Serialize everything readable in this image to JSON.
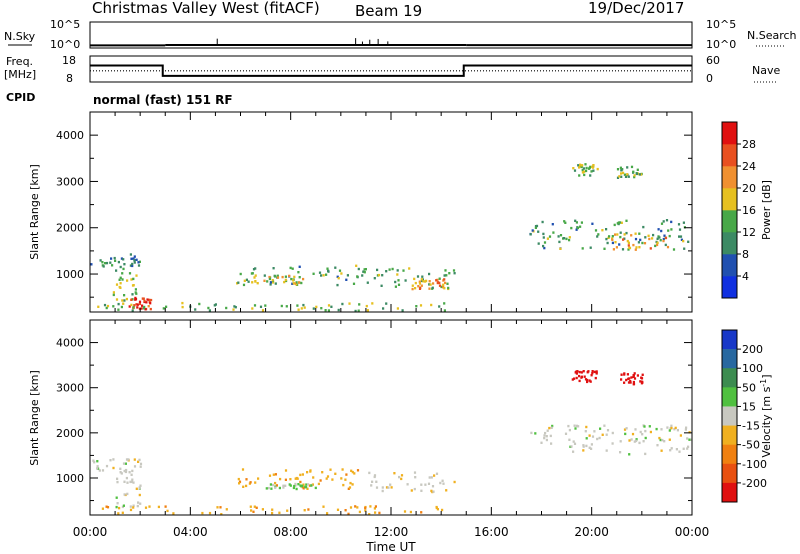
{
  "header": {
    "title": "Christmas Valley West (fitACF)",
    "beam": "Beam 19",
    "date": "19/Dec/2017"
  },
  "noise_panel": {
    "left_label": "N.Sky",
    "right_label": "N.Search",
    "ticks_left": [
      "10^5",
      "10^0"
    ],
    "ticks_right": [
      "10^5",
      "10^0"
    ]
  },
  "freq_panel": {
    "left_label_line1": "Freq.",
    "left_label_line2": "[MHz]",
    "right_label": "Nave",
    "ticks_left": [
      "18",
      "8"
    ],
    "ticks_right": [
      "60",
      "0"
    ]
  },
  "cpid": {
    "label": "CPID",
    "value": "normal (fast) 151 RF"
  },
  "x_axis": {
    "label": "Time UT",
    "ticks": [
      "00:00",
      "04:00",
      "08:00",
      "12:00",
      "16:00",
      "20:00",
      "00:00"
    ]
  },
  "range_axis": {
    "label": "Slant Range [km]",
    "ticks": [
      "1000",
      "2000",
      "3000",
      "4000"
    ]
  },
  "power_colorbar": {
    "label": "Power [dB]",
    "ticks": [
      "4",
      "8",
      "12",
      "16",
      "20",
      "24",
      "28"
    ],
    "colors": [
      "#1030e0",
      "#2050b0",
      "#3c8a64",
      "#48a848",
      "#e6c020",
      "#f09030",
      "#e85020",
      "#e01010"
    ]
  },
  "velocity_colorbar": {
    "label_text": "Velocity [m s",
    "label_exp": "-1",
    "label_close": "]",
    "ticks": [
      "200",
      "100",
      "50",
      "15",
      "-15",
      "-50",
      "-100",
      "-200"
    ],
    "colors": [
      "#1838c8",
      "#2868a0",
      "#3c8c50",
      "#50c040",
      "#c8c8c0",
      "#f0b020",
      "#f08010",
      "#e85010",
      "#e01010"
    ]
  },
  "chart_data": {
    "type": "heatmap",
    "title": "Christmas Valley West (fitACF)",
    "subtitle": "Beam 19",
    "date": "19/Dec/2017",
    "xlabel": "Time UT",
    "x_unit": "hours UT",
    "xlim": [
      0,
      24
    ],
    "ylabel": "Slant Range [km]",
    "ylim": [
      180,
      4500
    ],
    "noise": {
      "scale": "log",
      "ylim_exp": [
        0,
        5
      ],
      "segments": [
        {
          "t0": 0,
          "t1": 3,
          "level_exp": 0.35
        },
        {
          "t0": 3,
          "t1": 15,
          "level_exp": 0.42
        },
        {
          "t0": 15,
          "t1": 24,
          "level_exp": 0.38
        }
      ]
    },
    "frequency": {
      "ylim": [
        8,
        18
      ],
      "nave_ylim": [
        0,
        60
      ],
      "segments": [
        {
          "t0": 0,
          "t1": 2.9,
          "mhz": 14.6
        },
        {
          "t0": 2.9,
          "t1": 14.9,
          "mhz": 9.9
        },
        {
          "t0": 14.9,
          "t1": 24,
          "mhz": 14.6
        }
      ],
      "nave_level": 25
    },
    "power": {
      "label": "Power [dB]",
      "range": [
        0,
        32
      ],
      "regions": [
        {
          "t0": 0.0,
          "t1": 2.0,
          "r0": 1150,
          "r1": 1450,
          "value": 10
        },
        {
          "t0": 0.9,
          "t1": 2.0,
          "r0": 380,
          "r1": 1150,
          "value": 15
        },
        {
          "t0": 1.5,
          "t1": 2.4,
          "r0": 260,
          "r1": 520,
          "value": 28
        },
        {
          "t0": 5.8,
          "t1": 11.0,
          "r0": 780,
          "r1": 1220,
          "value": 12
        },
        {
          "t0": 6.5,
          "t1": 8.5,
          "r0": 800,
          "r1": 1000,
          "value": 19
        },
        {
          "t0": 11.0,
          "t1": 14.5,
          "r0": 700,
          "r1": 1150,
          "value": 12
        },
        {
          "t0": 12.8,
          "t1": 14.2,
          "r0": 700,
          "r1": 950,
          "value": 22
        },
        {
          "t0": 0.0,
          "t1": 14.5,
          "r0": 200,
          "r1": 400,
          "value": 14
        },
        {
          "t0": 17.5,
          "t1": 24.0,
          "r0": 1550,
          "r1": 2200,
          "value": 12
        },
        {
          "t0": 20.5,
          "t1": 23.0,
          "r0": 1550,
          "r1": 1900,
          "value": 20
        },
        {
          "t0": 19.2,
          "t1": 20.2,
          "r0": 3150,
          "r1": 3400,
          "value": 14
        },
        {
          "t0": 21.0,
          "t1": 22.0,
          "r0": 3100,
          "r1": 3350,
          "value": 14
        }
      ]
    },
    "velocity": {
      "label": "Velocity [m s-1]",
      "range": [
        -200,
        200
      ],
      "regions": [
        {
          "t0": 0.0,
          "t1": 2.0,
          "r0": 1150,
          "r1": 1450,
          "value": 0
        },
        {
          "t0": 0.9,
          "t1": 2.0,
          "r0": 380,
          "r1": 1150,
          "value": 0
        },
        {
          "t0": 5.8,
          "t1": 11.0,
          "r0": 780,
          "r1": 1220,
          "value": -40
        },
        {
          "t0": 7.0,
          "t1": 9.0,
          "r0": 780,
          "r1": 900,
          "value": 20
        },
        {
          "t0": 11.0,
          "t1": 14.5,
          "r0": 700,
          "r1": 1150,
          "value": -5
        },
        {
          "t0": 0.0,
          "t1": 14.5,
          "r0": 200,
          "r1": 400,
          "value": -40
        },
        {
          "t0": 17.5,
          "t1": 24.0,
          "r0": 1550,
          "r1": 2200,
          "value": 0
        },
        {
          "t0": 19.2,
          "t1": 20.2,
          "r0": 3150,
          "r1": 3400,
          "value": -220
        },
        {
          "t0": 21.0,
          "t1": 22.0,
          "r0": 3100,
          "r1": 3350,
          "value": -220
        }
      ]
    }
  }
}
